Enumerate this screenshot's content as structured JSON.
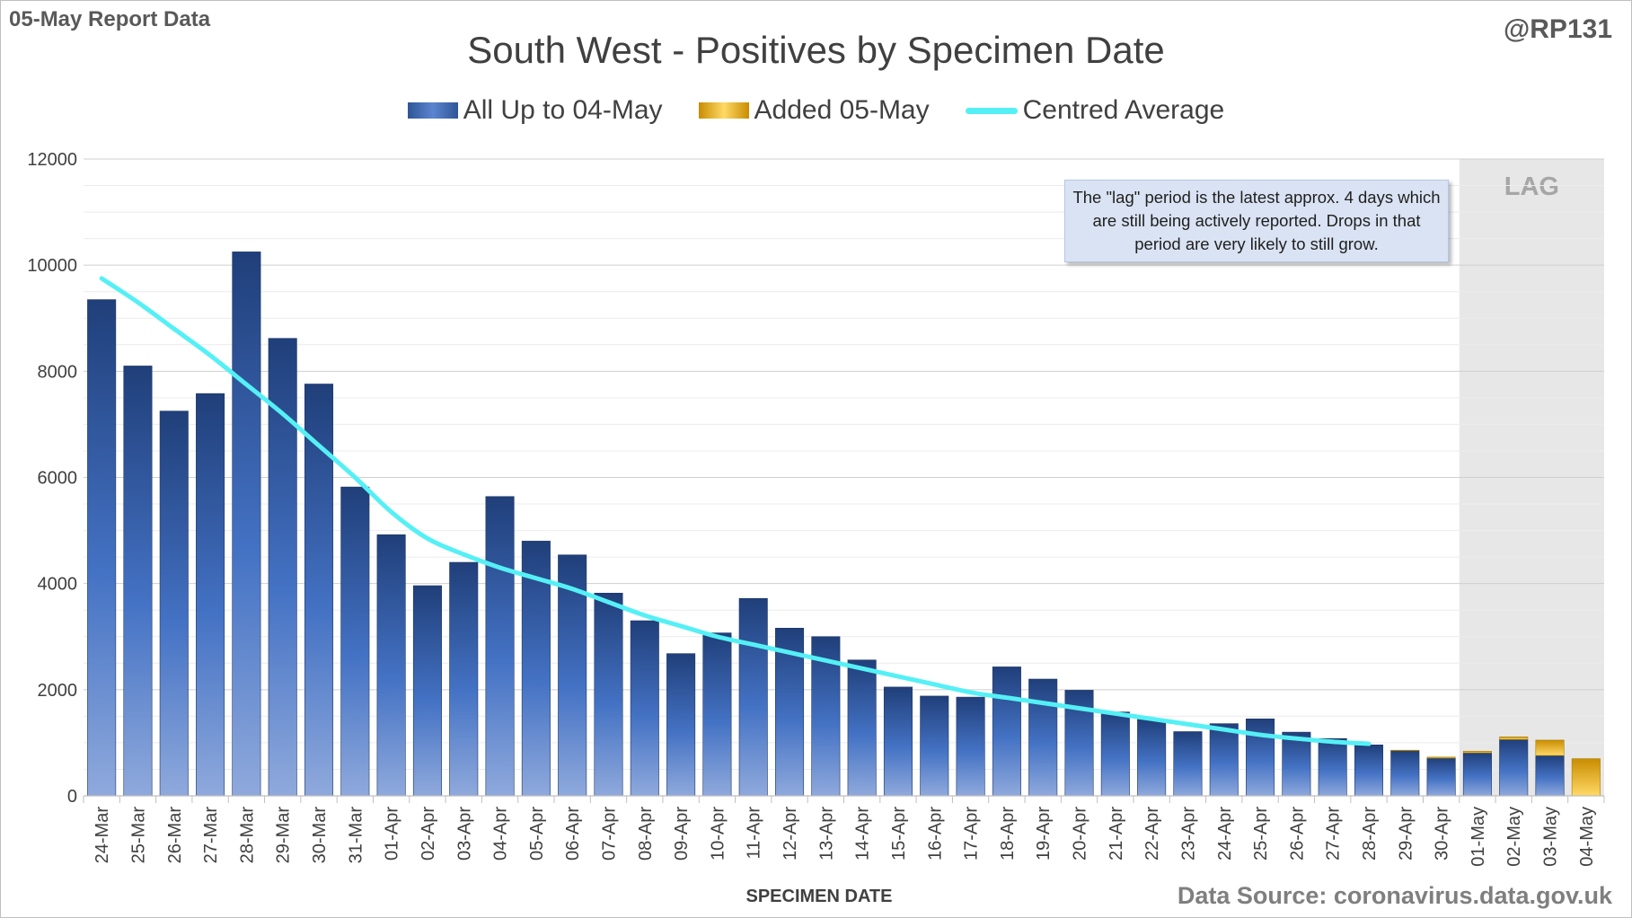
{
  "header": {
    "report_label": "05-May Report Data",
    "handle": "@RP131"
  },
  "footer": {
    "source": "Data Source: coronavirus.data.gov.uk"
  },
  "annotation": {
    "note": "The \"lag\" period is the latest approx. 4 days which are still being actively reported. Drops in that period are very likely to still grow."
  },
  "colors": {
    "base_bar": "#2f5597",
    "base_bar_light": "#8fa9dc",
    "added_bar": "#ffc000",
    "added_bar_light": "#ffe699",
    "average_line": "#55f0f5",
    "lag_shade": "#e7e7e7",
    "grid": "#d9d9d9"
  },
  "chart_data": {
    "type": "bar",
    "title": "South West - Positives by Specimen Date",
    "xlabel": "SPECIMEN DATE",
    "ylabel": "",
    "ylim": [
      0,
      12000
    ],
    "yticks": [
      0,
      2000,
      4000,
      6000,
      8000,
      10000,
      12000
    ],
    "grid": true,
    "legend_position": "top",
    "stacked": true,
    "categories": [
      "24-Mar",
      "25-Mar",
      "26-Mar",
      "27-Mar",
      "28-Mar",
      "29-Mar",
      "30-Mar",
      "31-Mar",
      "01-Apr",
      "02-Apr",
      "03-Apr",
      "04-Apr",
      "05-Apr",
      "06-Apr",
      "07-Apr",
      "08-Apr",
      "09-Apr",
      "10-Apr",
      "11-Apr",
      "12-Apr",
      "13-Apr",
      "14-Apr",
      "15-Apr",
      "16-Apr",
      "17-Apr",
      "18-Apr",
      "19-Apr",
      "20-Apr",
      "21-Apr",
      "22-Apr",
      "23-Apr",
      "24-Apr",
      "25-Apr",
      "26-Apr",
      "27-Apr",
      "28-Apr",
      "29-Apr",
      "30-Apr",
      "01-May",
      "02-May",
      "03-May",
      "04-May"
    ],
    "series": [
      {
        "name": "All Up to 04-May",
        "kind": "bar",
        "values": [
          9350,
          8100,
          7250,
          7580,
          10250,
          8620,
          7760,
          5820,
          4920,
          3960,
          4400,
          5640,
          4800,
          4540,
          3820,
          3300,
          2680,
          3070,
          3720,
          3160,
          3000,
          2560,
          2050,
          1880,
          1860,
          2430,
          2200,
          1990,
          1580,
          1440,
          1210,
          1360,
          1450,
          1200,
          1080,
          960,
          850,
          710,
          810,
          1060,
          760,
          0
        ]
      },
      {
        "name": "Added 05-May",
        "kind": "bar",
        "values": [
          0,
          0,
          0,
          0,
          0,
          0,
          0,
          0,
          0,
          0,
          0,
          0,
          0,
          0,
          0,
          0,
          0,
          0,
          0,
          0,
          0,
          0,
          0,
          0,
          0,
          0,
          0,
          0,
          0,
          0,
          0,
          0,
          0,
          0,
          0,
          0,
          10,
          20,
          30,
          50,
          290,
          700
        ]
      },
      {
        "name": "Centred Average",
        "kind": "line",
        "values": [
          9750,
          9300,
          8800,
          8300,
          7750,
          7200,
          6600,
          6000,
          5350,
          4850,
          4550,
          4300,
          4100,
          3900,
          3650,
          3400,
          3200,
          3000,
          2850,
          2700,
          2550,
          2400,
          2250,
          2100,
          1950,
          1850,
          1750,
          1650,
          1550,
          1450,
          1350,
          1250,
          1150,
          1080,
          1020,
          980,
          null,
          null,
          null,
          null,
          null,
          null
        ]
      }
    ],
    "lag": {
      "label": "LAG",
      "start": "01-May",
      "end": "04-May"
    }
  }
}
